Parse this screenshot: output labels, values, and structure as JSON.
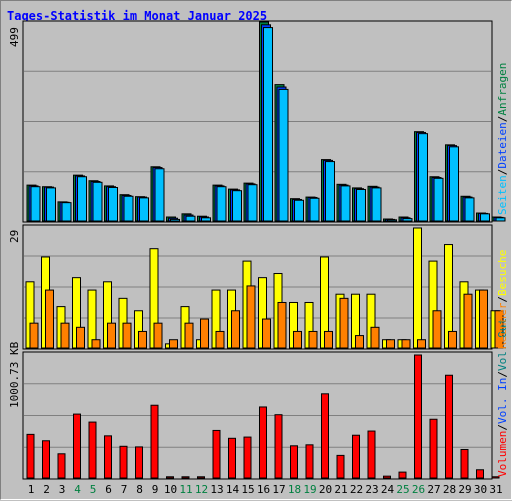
{
  "title": "Tages-Statistik im Monat Januar 2025",
  "colors": {
    "background": "#c0c0c0",
    "title": "#0000ff",
    "anfragen": "#008040",
    "dateien": "#0040ff",
    "seiten": "#00c0ff",
    "besuche": "#ffff00",
    "rechner": "#ff8000",
    "vol_out": "#008080",
    "vol_in": "#0040ff",
    "volumen": "#ff0000",
    "weekend_label": "#008040"
  },
  "legend": {
    "anfragen": "Anfragen",
    "dateien": "Dateien",
    "seiten": "Seiten",
    "besuche": "Besuche",
    "rechner": "Rechner",
    "vol_out": "Vol. Out",
    "vol_in": "Vol. In",
    "volumen": "Volumen",
    "separator": "/"
  },
  "chart_data": [
    {
      "type": "bar",
      "panel": "top",
      "ymax_label": "499",
      "ylim": [
        0,
        499
      ],
      "categories": [
        "1",
        "2",
        "3",
        "4",
        "5",
        "6",
        "7",
        "8",
        "9",
        "10",
        "11",
        "12",
        "13",
        "14",
        "15",
        "16",
        "17",
        "18",
        "19",
        "20",
        "21",
        "22",
        "23",
        "24",
        "25",
        "26",
        "27",
        "28",
        "29",
        "30",
        "31"
      ],
      "weekend_days": [
        "4",
        "5",
        "11",
        "12",
        "18",
        "19",
        "25",
        "26"
      ],
      "series": [
        {
          "name": "Anfragen",
          "color": "#008040",
          "values": [
            90,
            86,
            48,
            115,
            101,
            88,
            66,
            61,
            136,
            10,
            18,
            12,
            90,
            80,
            95,
            499,
            342,
            56,
            60,
            154,
            92,
            83,
            87,
            5,
            10,
            224,
            111,
            191,
            62,
            20,
            10
          ]
        },
        {
          "name": "Dateien",
          "color": "#0040ff",
          "values": [
            88,
            85,
            47,
            113,
            99,
            86,
            64,
            60,
            134,
            7,
            15,
            10,
            88,
            78,
            93,
            492,
            336,
            54,
            59,
            152,
            90,
            81,
            85,
            4,
            8,
            222,
            109,
            189,
            60,
            19,
            9
          ]
        },
        {
          "name": "Seiten",
          "color": "#00c0ff",
          "values": [
            86,
            83,
            46,
            111,
            97,
            84,
            62,
            58,
            131,
            4,
            12,
            8,
            86,
            76,
            91,
            485,
            330,
            52,
            57,
            149,
            88,
            79,
            83,
            3,
            6,
            219,
            107,
            186,
            58,
            18,
            8
          ]
        }
      ]
    },
    {
      "type": "bar",
      "panel": "middle",
      "ymax_label": "29",
      "ylim": [
        0,
        29
      ],
      "categories": [
        "1",
        "2",
        "3",
        "4",
        "5",
        "6",
        "7",
        "8",
        "9",
        "10",
        "11",
        "12",
        "13",
        "14",
        "15",
        "16",
        "17",
        "18",
        "19",
        "20",
        "21",
        "22",
        "23",
        "24",
        "25",
        "26",
        "27",
        "28",
        "29",
        "30",
        "31"
      ],
      "series": [
        {
          "name": "Besuche",
          "color": "#ffff00",
          "values": [
            16,
            22,
            10,
            17,
            14,
            16,
            12,
            9,
            24,
            1,
            10,
            2,
            14,
            14,
            21,
            17,
            18,
            11,
            11,
            22,
            13,
            13,
            13,
            2,
            2,
            29,
            21,
            25,
            16,
            14,
            9
          ]
        },
        {
          "name": "Rechner",
          "color": "#ff8000",
          "values": [
            6,
            14,
            6,
            5,
            2,
            6,
            6,
            4,
            6,
            2,
            6,
            7,
            4,
            9,
            15,
            7,
            11,
            4,
            4,
            4,
            12,
            3,
            5,
            2,
            2,
            2,
            9,
            4,
            13,
            14,
            9
          ]
        }
      ]
    },
    {
      "type": "bar",
      "panel": "bottom",
      "ymax_label": "1000.73 KB",
      "ylim": [
        0,
        1000.73
      ],
      "unit": "KB",
      "categories": [
        "1",
        "2",
        "3",
        "4",
        "5",
        "6",
        "7",
        "8",
        "9",
        "10",
        "11",
        "12",
        "13",
        "14",
        "15",
        "16",
        "17",
        "18",
        "19",
        "20",
        "21",
        "22",
        "23",
        "24",
        "25",
        "26",
        "27",
        "28",
        "29",
        "30",
        "31"
      ],
      "series": [
        {
          "name": "Volumen",
          "color": "#ff0000",
          "values": [
            355,
            303,
            197,
            520,
            455,
            343,
            258,
            253,
            592,
            10,
            10,
            10,
            387,
            323,
            333,
            578,
            515,
            262,
            270,
            685,
            184,
            348,
            382,
            15,
            48,
            1000.73,
            478,
            836,
            232,
            67,
            10
          ]
        }
      ]
    }
  ]
}
